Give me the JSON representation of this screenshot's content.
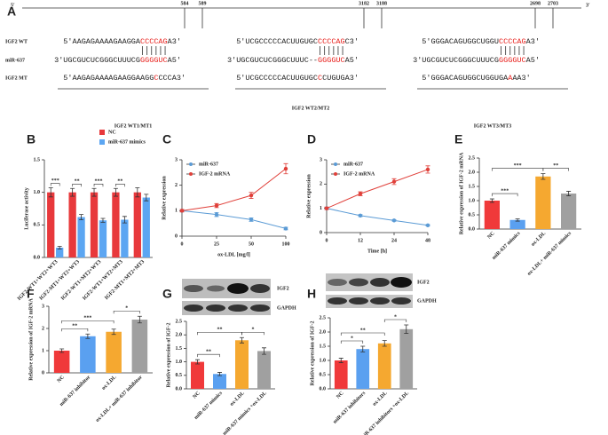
{
  "panels": [
    "A",
    "B",
    "C",
    "D",
    "E",
    "F",
    "G",
    "H"
  ],
  "panel_a": {
    "five_prime": "5′",
    "three_prime": "3′",
    "row_labels": [
      "IGF2 WT",
      "miR-637",
      "IGF2 MT"
    ],
    "groups": [
      {
        "positions": [
          584,
          589
        ],
        "label": "IGF2 WT1/MT1",
        "rows": [
          [
            "5′AAGAGAAAAGAAGGA",
            "CCCCAG",
            "A3′"
          ],
          [
            "3′UGCGUCUCGGGCUUUCG",
            "GGGGUC",
            "A5′"
          ],
          [
            "5′AAGAGAAAAGAAGGAAGG",
            "C",
            "CCCA3′"
          ]
        ]
      },
      {
        "positions": [
          3182,
          3188
        ],
        "label": "IGF2 WT2/MT2",
        "rows": [
          [
            "5′UCGCCCCCACUUGUGC",
            "CCCCAG",
            "C3′"
          ],
          [
            "3′UGCGUCUCGGGCUUUC--",
            "GGGGUC",
            "A5′"
          ],
          [
            "5′UCGCCCCCACUUGUGC",
            "C",
            "CUGUGA3′"
          ]
        ]
      },
      {
        "positions": [
          2698,
          2703
        ],
        "label": "IGF2 WT3/MT3",
        "rows": [
          [
            "5′GGGACAGUGGCUGGU",
            "CCCCAG",
            "A3′"
          ],
          [
            "3′UGCGUCUCGGGCUUUCG",
            "GGGGUC",
            "A5′"
          ],
          [
            "5′GGGACAGUGGCUGGUGA",
            "A",
            "AA3′"
          ]
        ]
      }
    ]
  },
  "chart_data": [
    {
      "type": "bar",
      "ylabel": "Luciferase activity",
      "categories": [
        "IGF2-WT1+WT2+WT3",
        "IGF2-MT1+WT2+WT3",
        "IGF2-WT1+MT2+WT3",
        "IGF2-WT1+WT2+MT3",
        "IGF2-MT1+MT2+MT3"
      ],
      "series": [
        {
          "name": "NC",
          "color": "#e8393c",
          "values": [
            1,
            1,
            1,
            1,
            1
          ],
          "errors": [
            0.07,
            0.06,
            0.06,
            0.06,
            0.07
          ]
        },
        {
          "name": "miR-637 mimics",
          "color": "#5ca6f2",
          "values": [
            0.15,
            0.62,
            0.57,
            0.58,
            0.92
          ],
          "errors": [
            0.02,
            0.04,
            0.03,
            0.05,
            0.05
          ]
        }
      ],
      "significance": [
        "***",
        "**",
        "***",
        "**",
        null
      ],
      "ylim": [
        0,
        1.5
      ],
      "yticks": [
        {
          "value": 0,
          "label": "0.0"
        },
        0.5,
        {
          "value": 1,
          "label": "1.0"
        },
        1.5
      ]
    },
    {
      "type": "line",
      "ylabel": "Relative expression",
      "xlabel": "ox-LDL [mg/l]",
      "categories": [
        "0",
        "25",
        "50",
        "100"
      ],
      "series": [
        {
          "name": "miR-637",
          "color": "#5b9bd5",
          "values": [
            1,
            0.85,
            0.65,
            0.3
          ],
          "errors": [
            0.05,
            0.08,
            0.07,
            0.05
          ]
        },
        {
          "name": "IGF-2 mRNA",
          "color": "#e0403a",
          "values": [
            1,
            1.2,
            1.6,
            2.65
          ],
          "errors": [
            0.05,
            0.08,
            0.12,
            0.2
          ]
        }
      ],
      "ylim": [
        0,
        3
      ],
      "yticks": [
        0,
        1,
        2,
        3
      ]
    },
    {
      "type": "line",
      "ylabel": "Relative expression",
      "xlabel": "Time [h]",
      "categories": [
        "0",
        "12",
        "24",
        "48"
      ],
      "series": [
        {
          "name": "miR-637",
          "color": "#5b9bd5",
          "values": [
            1,
            0.7,
            0.5,
            0.3
          ],
          "errors": [
            0.05,
            0.04,
            0.03,
            0.03
          ]
        },
        {
          "name": "IGF-2 mRNA",
          "color": "#e0403a",
          "values": [
            1,
            1.6,
            2.1,
            2.6
          ],
          "errors": [
            0.05,
            0.08,
            0.12,
            0.15
          ]
        }
      ],
      "ylim": [
        0,
        3
      ],
      "yticks": [
        0,
        1,
        2,
        3
      ]
    },
    {
      "type": "bar",
      "ylabel": "Relative expression of IGF-2 mRNA",
      "categories": [
        "NC",
        "miR-637 mimics",
        "ox-LDL",
        "ox-LDL+ miR-637 mimics"
      ],
      "values": [
        1,
        0.32,
        1.85,
        1.25
      ],
      "errors": [
        0.06,
        0.04,
        0.1,
        0.08
      ],
      "colors": [
        "#f0393a",
        "#5aa0f0",
        "#f5a830",
        "#a0a0a0"
      ],
      "comparisons": [
        {
          "label": "***",
          "pair": [
            0,
            1
          ]
        },
        {
          "label": "***",
          "pair": [
            0,
            2
          ]
        },
        {
          "label": "**",
          "pair": [
            2,
            3
          ]
        }
      ],
      "ylim": [
        0,
        2.5
      ],
      "yticks": [
        {
          "value": 0,
          "label": "0.0"
        },
        0.5,
        {
          "value": 1,
          "label": "1.0"
        },
        1.5,
        {
          "value": 2,
          "label": "2.0"
        },
        2.5
      ]
    },
    {
      "type": "bar",
      "ylabel": "Relative expression of IGF-2 mRNA",
      "categories": [
        "NC",
        "miR-637 inhibitor",
        "ox-LDL",
        "ox-LDL+ miR-637 inhibitor"
      ],
      "values": [
        1,
        1.65,
        1.85,
        2.4
      ],
      "errors": [
        0.08,
        0.1,
        0.12,
        0.15
      ],
      "colors": [
        "#f0393a",
        "#5aa0f0",
        "#f5a830",
        "#a0a0a0"
      ],
      "comparisons": [
        {
          "label": "**",
          "pair": [
            0,
            1
          ]
        },
        {
          "label": "***",
          "pair": [
            0,
            2
          ]
        },
        {
          "label": "*",
          "pair": [
            2,
            3
          ]
        }
      ],
      "ylim": [
        0,
        3
      ],
      "yticks": [
        0,
        1,
        2,
        3
      ]
    },
    {
      "type": "bar",
      "ylabel": "Relative expression of IGF-2",
      "blot_labels": [
        "IGF2",
        "GAPDH"
      ],
      "categories": [
        "NC",
        "miR-637 mimics",
        "ox-LDL",
        "miR-637 mimics +ox-LDL"
      ],
      "values": [
        1,
        0.55,
        1.8,
        1.4
      ],
      "errors": [
        0.08,
        0.06,
        0.1,
        0.12
      ],
      "colors": [
        "#f0393a",
        "#5aa0f0",
        "#f5a830",
        "#a0a0a0"
      ],
      "comparisons": [
        {
          "label": "**",
          "pair": [
            0,
            1
          ]
        },
        {
          "label": "**",
          "pair": [
            0,
            2
          ]
        },
        {
          "label": "*",
          "pair": [
            2,
            3
          ]
        }
      ],
      "ylim": [
        0,
        2.5
      ],
      "yticks": [
        {
          "value": 0,
          "label": "0.0"
        },
        0.5,
        {
          "value": 1,
          "label": "1.0"
        },
        1.5,
        {
          "value": 2,
          "label": "2.0"
        },
        2.5
      ]
    },
    {
      "type": "bar",
      "ylabel": "Relative expression of IGF-2",
      "blot_labels": [
        "IGF2",
        "GAPDH"
      ],
      "categories": [
        "NC",
        "miR-637 inhibitors",
        "ox-LDL",
        "miR-637 inhibitors +ox-LDL"
      ],
      "values": [
        1,
        1.4,
        1.6,
        2.1
      ],
      "errors": [
        0.08,
        0.1,
        0.1,
        0.15
      ],
      "colors": [
        "#f0393a",
        "#5aa0f0",
        "#f5a830",
        "#a0a0a0"
      ],
      "comparisons": [
        {
          "label": "*",
          "pair": [
            0,
            1
          ]
        },
        {
          "label": "**",
          "pair": [
            0,
            2
          ]
        },
        {
          "label": "*",
          "pair": [
            2,
            3
          ]
        }
      ],
      "ylim": [
        0,
        2.5
      ],
      "yticks": [
        {
          "value": 0,
          "label": "0.0"
        },
        0.5,
        {
          "value": 1,
          "label": "1.0"
        },
        1.5,
        {
          "value": 2,
          "label": "2.0"
        },
        2.5
      ]
    }
  ]
}
